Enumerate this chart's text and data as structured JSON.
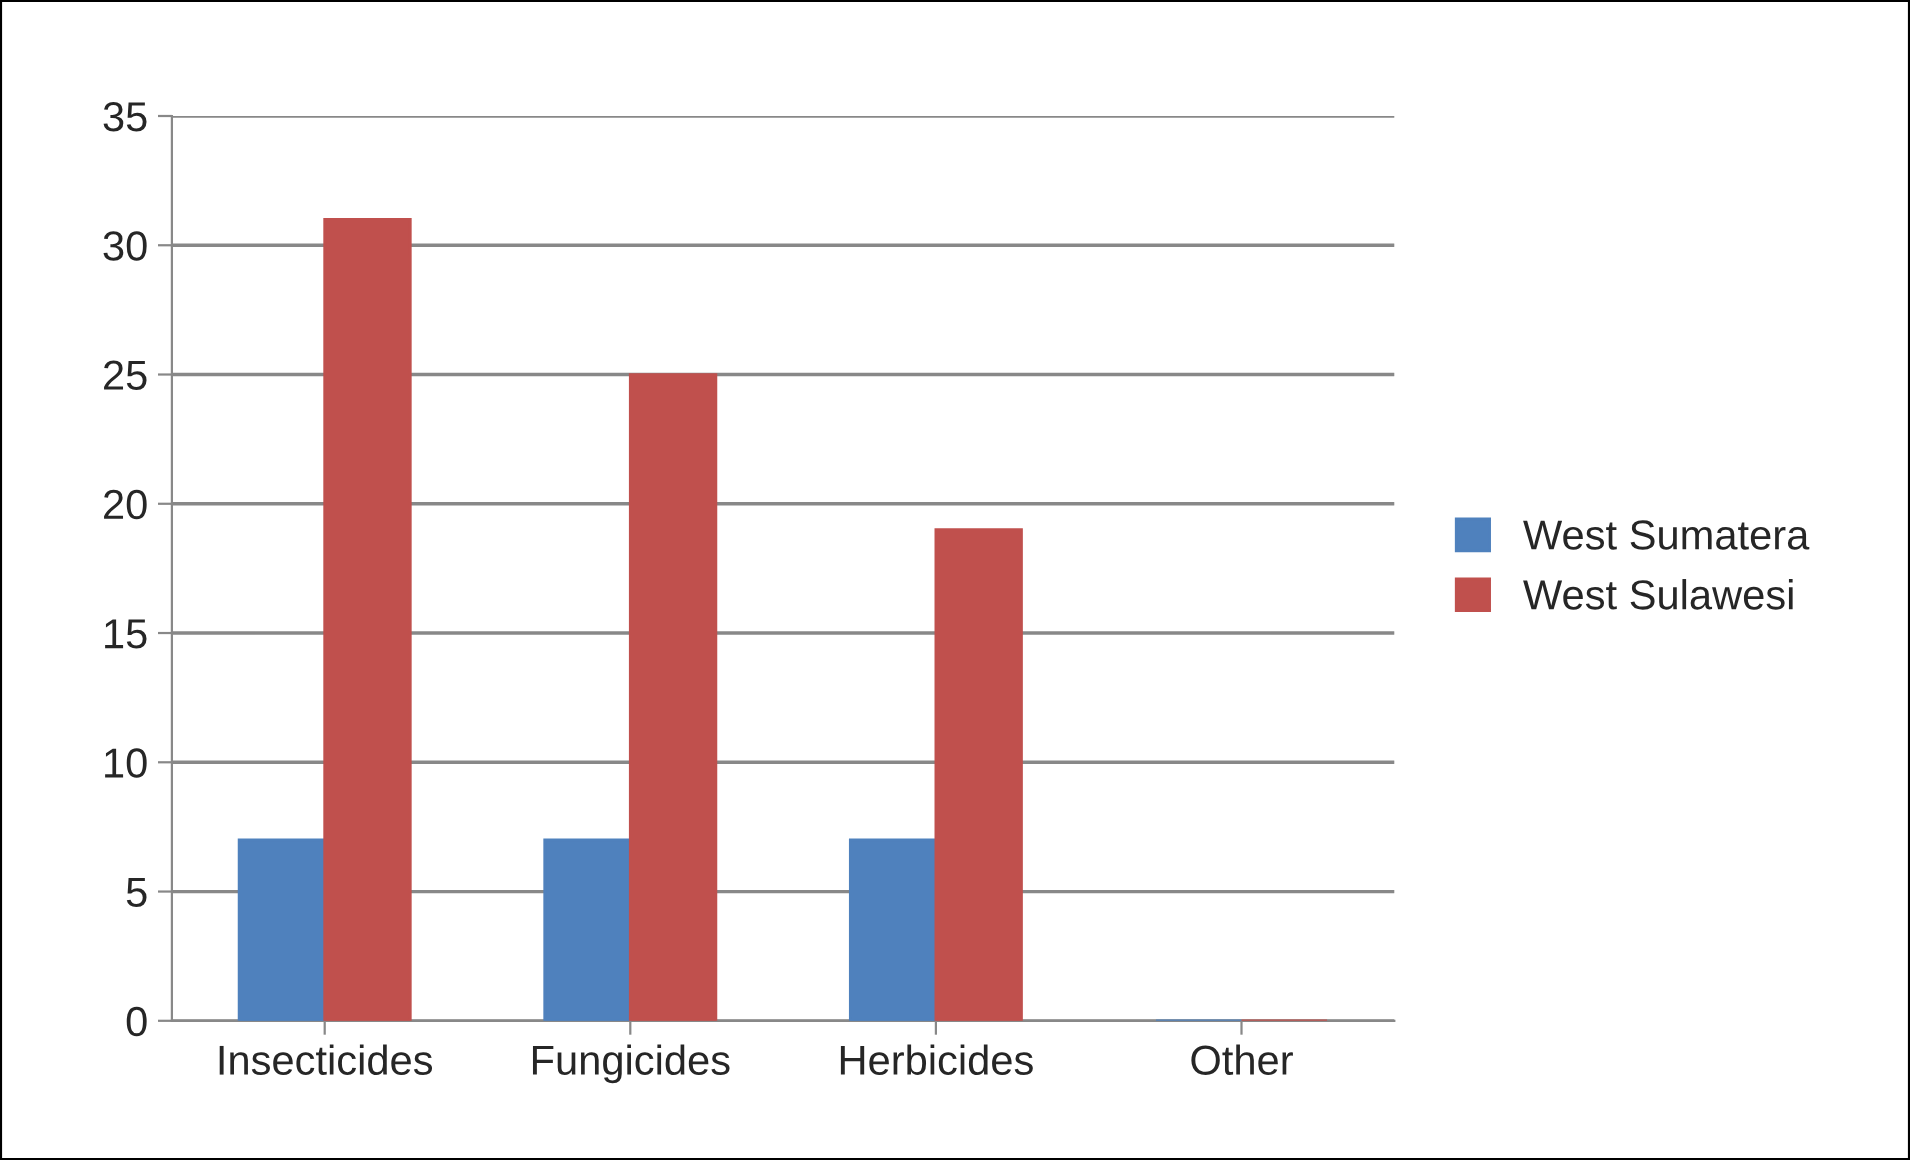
{
  "chart_data": {
    "type": "bar",
    "categories": [
      "Insecticides",
      "Fungicides",
      "Herbicides",
      "Other"
    ],
    "series": [
      {
        "name": "West Sumatera",
        "color": "#4f81bd",
        "values": [
          7,
          7,
          7,
          0
        ]
      },
      {
        "name": "West Sulawesi",
        "color": "#c0504d",
        "values": [
          31,
          25,
          19,
          0
        ]
      }
    ],
    "ylim": [
      0,
      35
    ],
    "yticks": [
      0,
      5,
      10,
      15,
      20,
      25,
      30,
      35
    ],
    "grid": "y",
    "legend": "right"
  }
}
